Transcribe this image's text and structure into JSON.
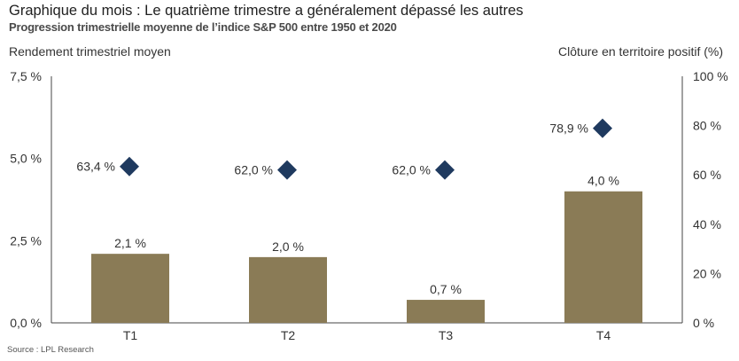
{
  "header": {
    "title": "Graphique du mois : Le quatrième trimestre a généralement dépassé les autres",
    "subtitle": "Progression trimestrielle moyenne de l’indice S&P 500 entre 1950 et 2020"
  },
  "footer": {
    "source": "Source : LPL Research"
  },
  "chart_data": {
    "type": "bar",
    "title": "Graphique du mois : Le quatrième trimestre a généralement dépassé les autres",
    "subtitle": "Progression trimestrielle moyenne de l’indice S&P 500 entre 1950 et 2020",
    "categories": [
      "T1",
      "T2",
      "T3",
      "T4"
    ],
    "y_left_label": "Rendement trimestriel moyen",
    "y_right_label": "Clôture en territoire positif (%)",
    "y_left_range": [
      0,
      7.5
    ],
    "y_left_ticks": [
      0,
      2.5,
      5,
      7.5
    ],
    "y_left_tick_labels": [
      "0,0 %",
      "2,5 %",
      "5,0 %",
      "7,5 %"
    ],
    "y_right_range": [
      0,
      100
    ],
    "y_right_ticks": [
      0,
      20,
      40,
      60,
      80,
      100
    ],
    "y_right_tick_labels": [
      "0 %",
      "20 %",
      "40 %",
      "60 %",
      "80 %",
      "100 %"
    ],
    "grid": false,
    "legend": "none",
    "series": [
      {
        "type": "bar",
        "axis": "left",
        "color": "#8a7b56",
        "values": [
          2.1,
          2.0,
          0.7,
          4.0
        ],
        "labels": [
          "2,1 %",
          "2,0 %",
          "0,7 %",
          "4,0 %"
        ]
      },
      {
        "type": "scatter",
        "marker": "diamond",
        "axis": "right",
        "color": "#1f3a5f",
        "values": [
          63.4,
          62.0,
          62.0,
          78.9
        ],
        "labels": [
          "63,4 %",
          "62,0 %",
          "62,0 %",
          "78,9 %"
        ]
      }
    ]
  }
}
